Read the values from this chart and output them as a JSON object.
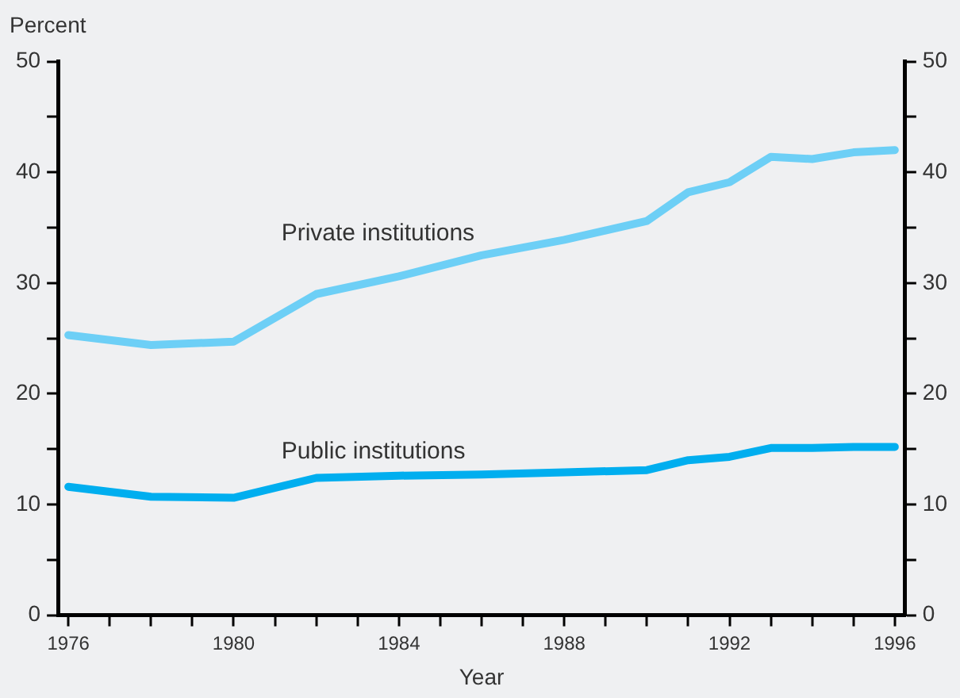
{
  "chart_data": {
    "type": "line",
    "ylabel": "Percent",
    "xlabel": "Year",
    "x": [
      1976,
      1978,
      1980,
      1982,
      1984,
      1986,
      1988,
      1990,
      1991,
      1992,
      1993,
      1994,
      1995,
      1996
    ],
    "series": [
      {
        "name": "Private institutions",
        "color": "#6dcff6",
        "values": [
          25.3,
          24.4,
          24.7,
          29.0,
          30.6,
          32.5,
          33.9,
          35.6,
          38.2,
          39.1,
          41.4,
          41.2,
          41.8,
          42.0
        ]
      },
      {
        "name": "Public institutions",
        "color": "#00aeef",
        "values": [
          11.6,
          10.7,
          10.6,
          12.4,
          12.6,
          12.7,
          12.9,
          13.1,
          14.0,
          14.3,
          15.1,
          15.1,
          15.2,
          15.2
        ]
      }
    ],
    "xlim": [
      1975.75,
      1996.25
    ],
    "xticks": [
      1976,
      {
        "value": 1977,
        "label": null
      },
      {
        "value": 1978,
        "label": null
      },
      {
        "value": 1979,
        "label": null
      },
      1980,
      {
        "value": 1981,
        "label": null
      },
      {
        "value": 1982,
        "label": null
      },
      {
        "value": 1983,
        "label": null
      },
      1984,
      {
        "value": 1985,
        "label": null
      },
      {
        "value": 1986,
        "label": null
      },
      {
        "value": 1987,
        "label": null
      },
      1988,
      {
        "value": 1989,
        "label": null
      },
      {
        "value": 1990,
        "label": null
      },
      {
        "value": 1991,
        "label": null
      },
      1992,
      {
        "value": 1993,
        "label": null
      },
      {
        "value": 1994,
        "label": null
      },
      {
        "value": 1995,
        "label": null
      },
      1996
    ],
    "ylim": [
      0,
      50
    ],
    "yticks": [
      0,
      {
        "value": 5,
        "label": null
      },
      10,
      {
        "value": 15,
        "label": null
      },
      20,
      {
        "value": 25,
        "label": null
      },
      30,
      {
        "value": 35,
        "label": null
      },
      40,
      {
        "value": 45,
        "label": null
      },
      50
    ],
    "y2lim": [
      0,
      50
    ],
    "y2ticks": [
      0,
      {
        "value": 5,
        "label": null
      },
      10,
      {
        "value": 15,
        "label": null
      },
      20,
      {
        "value": 25,
        "label": null
      },
      30,
      {
        "value": 35,
        "label": null
      },
      40,
      {
        "value": 45,
        "label": null
      },
      50
    ],
    "grid": false,
    "legend": false,
    "marker": "none",
    "line_style": "solid"
  }
}
